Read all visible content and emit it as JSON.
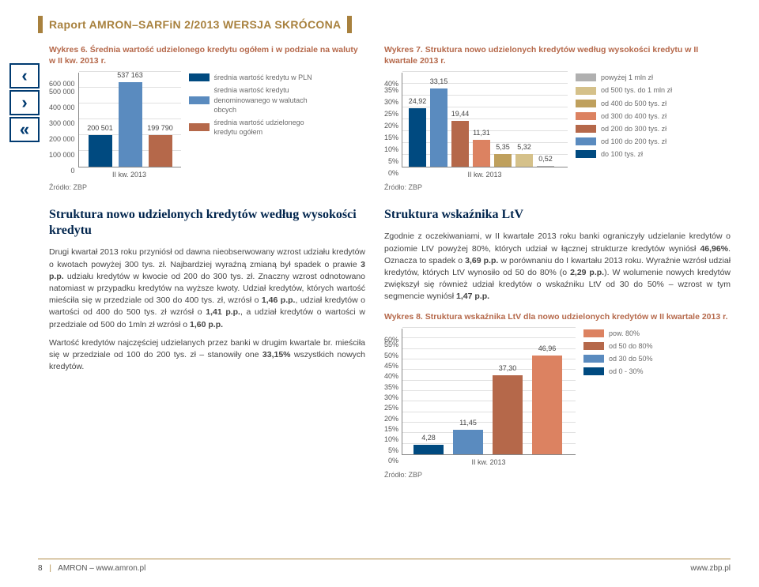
{
  "header": {
    "title": "Raport AMRON–SARFiN 2/2013 WERSJA SKRÓCONA"
  },
  "nav": {
    "prev": "‹",
    "next": "›",
    "home": "«"
  },
  "chart6": {
    "title": "Wykres 6. Średnia wartość udzielonego kredytu ogółem i w podziale na waluty w II kw. 2013 r.",
    "y_ticks": [
      "600 000",
      "500 000",
      "400 000",
      "300 000",
      "200 000",
      "100 000",
      "0"
    ],
    "x_label": "II kw. 2013",
    "bars": [
      {
        "value": 200501,
        "label": "200 501",
        "color": "#004a80"
      },
      {
        "value": 537163,
        "label": "537 163",
        "color": "#5a8bbf"
      },
      {
        "value": 199790,
        "label": "199 790",
        "color": "#b5684a"
      }
    ],
    "y_max": 600000,
    "legend": [
      {
        "color": "#004a80",
        "label": "średnia wartość kredytu w PLN"
      },
      {
        "color": "#5a8bbf",
        "label": "średnia wartość kredytu denominowanego w walutach obcych"
      },
      {
        "color": "#b5684a",
        "label": "średnia wartość udzielonego kredytu ogółem"
      }
    ],
    "source": "Źródło: ZBP"
  },
  "chart7": {
    "title": "Wykres 7. Struktura nowo udzielonych kredytów według wysokości kredytu w II kwartale 2013 r.",
    "y_ticks": [
      "40%",
      "35%",
      "30%",
      "25%",
      "20%",
      "15%",
      "10%",
      "5%",
      "0%"
    ],
    "x_label": "II kw. 2013",
    "y_max": 40,
    "bars": [
      {
        "value": 24.92,
        "label": "24,92",
        "color": "#004a80"
      },
      {
        "value": 33.15,
        "label": "33,15",
        "color": "#5a8bbf"
      },
      {
        "value": 19.44,
        "label": "19,44",
        "color": "#b5684a"
      },
      {
        "value": 11.31,
        "label": "11,31",
        "color": "#dc8261"
      },
      {
        "value": 5.35,
        "label": "5,35",
        "color": "#bfa05d"
      },
      {
        "value": 5.32,
        "label": "5,32",
        "color": "#d5c18a"
      },
      {
        "value": 0.52,
        "label": "0,52",
        "color": "#b0b0b0"
      }
    ],
    "legend": [
      {
        "color": "#b0b0b0",
        "label": "powyżej 1 mln zł"
      },
      {
        "color": "#d5c18a",
        "label": "od 500 tys. do 1 mln zł"
      },
      {
        "color": "#bfa05d",
        "label": "od 400 do 500 tys. zł"
      },
      {
        "color": "#dc8261",
        "label": "od 300 do 400 tys. zł"
      },
      {
        "color": "#b5684a",
        "label": "od 200 do 300 tys. zł"
      },
      {
        "color": "#5a8bbf",
        "label": "od 100 do 200 tys. zł"
      },
      {
        "color": "#004a80",
        "label": "do 100 tys. zł"
      }
    ],
    "source": "Źródło: ZBP"
  },
  "section_left": {
    "heading": "Struktura nowo udzielonych kredytów według wysokości kredytu",
    "p1": "Drugi kwartał 2013 roku przyniósł od dawna nieobserwowany wzrost udziału kredytów o kwotach powyżej 300 tys. zł. Najbardziej wyraźną zmianą był spadek o prawie <b>3 p.p.</b> udziału kredytów w kwocie od 200 do 300 tys. zł. Znaczny wzrost odnotowano natomiast w przypadku kredytów na wyższe kwoty. Udział kredytów, których wartość mieściła się w przedziale od 300 do 400 tys. zł, wzrósł o <b>1,46 p.p.</b>, udział kredytów o wartości od 400 do 500 tys. zł wzrósł o <b>1,41 p.p.</b>, a udział kredytów o wartości w przedziale od 500 do 1mln zł wzrósł o <b>1,60 p.p.</b>",
    "p2": "Wartość kredytów najczęściej udzielanych przez banki w drugim kwartale br. mieściła się w przedziale od 100 do 200 tys. zł – stanowiły one <b>33,15%</b> wszystkich nowych kredytów."
  },
  "section_right": {
    "heading": "Struktura wskaźnika LtV",
    "p1": "Zgodnie z oczekiwaniami, w II kwartale 2013 roku banki ograniczyły udzielanie kredytów o poziomie LtV powyżej 80%, których udział w łącznej strukturze kredytów wyniósł <b>46,96%</b>. Oznacza to spadek o <b>3,69 p.p.</b> w porównaniu do I kwartału 2013 roku. Wyraźnie wzrósł udział kredytów, których LtV wynosiło od 50 do 80% (o <b>2,29 p.p.</b>). W wolumenie nowych kredytów zwiększył się również udział kredytów o wskaźniku LtV od 30 do 50% – wzrost w tym segmencie wyniósł <b>1,47 p.p.</b>"
  },
  "chart8": {
    "title": "Wykres 8. Struktura wskaźnika LtV dla nowo udzielonych kredytów w II kwartale 2013 r.",
    "y_ticks": [
      "60%",
      "55%",
      "50%",
      "45%",
      "40%",
      "35%",
      "30%",
      "25%",
      "20%",
      "15%",
      "10%",
      "5%",
      "0%"
    ],
    "y_max": 60,
    "x_label": "II kw. 2013",
    "bars": [
      {
        "value": 4.28,
        "label": "4,28",
        "color": "#004a80"
      },
      {
        "value": 11.45,
        "label": "11,45",
        "color": "#5a8bbf"
      },
      {
        "value": 37.3,
        "label": "37,30",
        "color": "#b5684a"
      },
      {
        "value": 46.96,
        "label": "46,96",
        "color": "#dc8261"
      }
    ],
    "legend": [
      {
        "color": "#dc8261",
        "label": "pow. 80%"
      },
      {
        "color": "#b5684a",
        "label": "od 50 do 80%"
      },
      {
        "color": "#5a8bbf",
        "label": "od 30 do 50%"
      },
      {
        "color": "#004a80",
        "label": "od 0 - 30%"
      }
    ],
    "source": "Źródło: ZBP"
  },
  "footer": {
    "page": "8",
    "left": "AMRON – www.amron.pl",
    "right": "www.zbp.pl"
  }
}
